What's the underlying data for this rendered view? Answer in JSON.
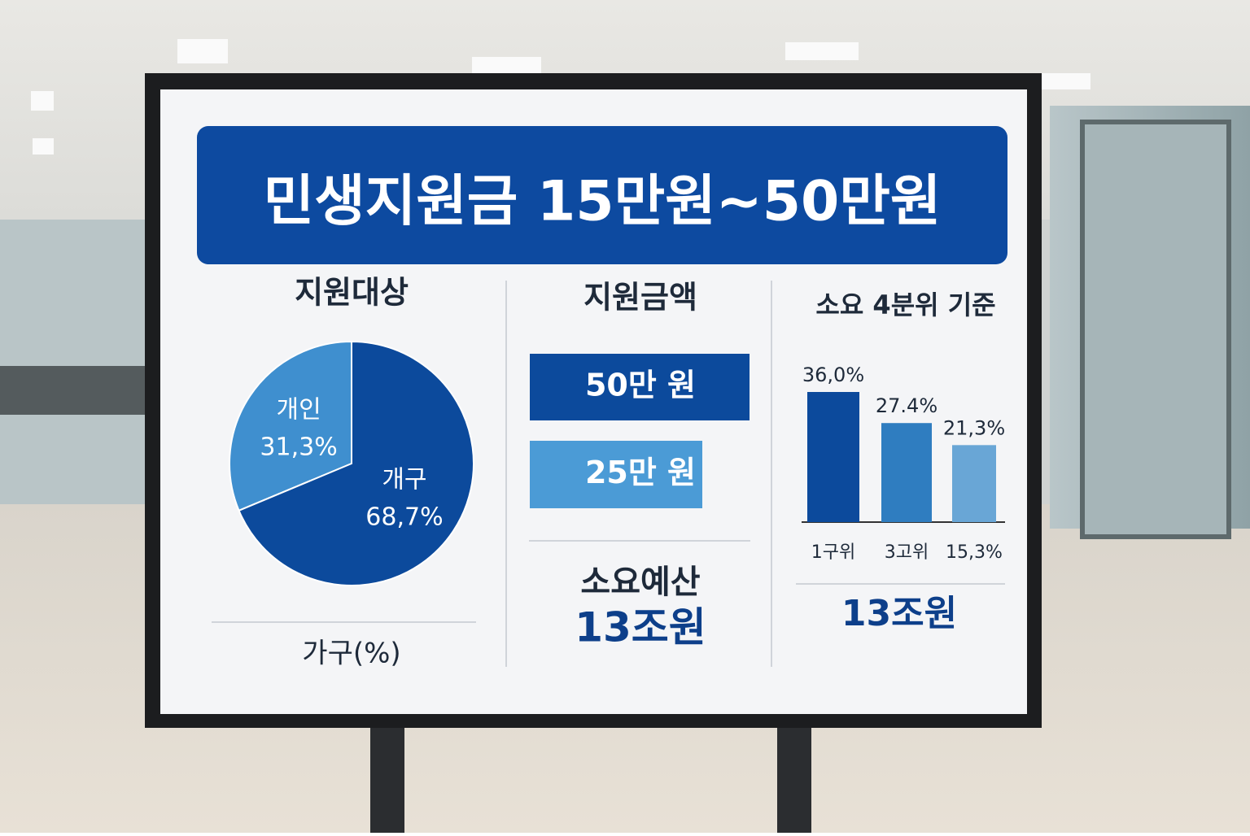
{
  "title": "민생지원금 15만원~50만원",
  "chart_data": [
    {
      "type": "pie",
      "title": "지원대상",
      "categories": [
        "개인",
        "개구"
      ],
      "values": [
        31.3,
        68.7
      ],
      "value_labels": [
        "31,3%",
        "68,7%"
      ],
      "colors": [
        "#3f8fcf",
        "#0c4a9c"
      ],
      "caption": "가구(%)"
    },
    {
      "type": "bar",
      "title": "소요 4분위 기준",
      "categories": [
        "1구위",
        "3고위",
        "15,3%"
      ],
      "values": [
        36.0,
        27.4,
        21.3
      ],
      "value_labels": [
        "36,0%",
        "27.4%",
        "21,3%"
      ],
      "colors": [
        "#0c4a9c",
        "#2f7dc0",
        "#69a6d6"
      ],
      "caption": "13조원"
    }
  ],
  "amount_panel": {
    "title": "지원금액",
    "items": [
      {
        "label": "50만 원",
        "color": "#0c4a9c"
      },
      {
        "label": "25만 원",
        "color": "#4b9bd6"
      }
    ],
    "budget_label": "소요예산",
    "budget": "13조원"
  }
}
